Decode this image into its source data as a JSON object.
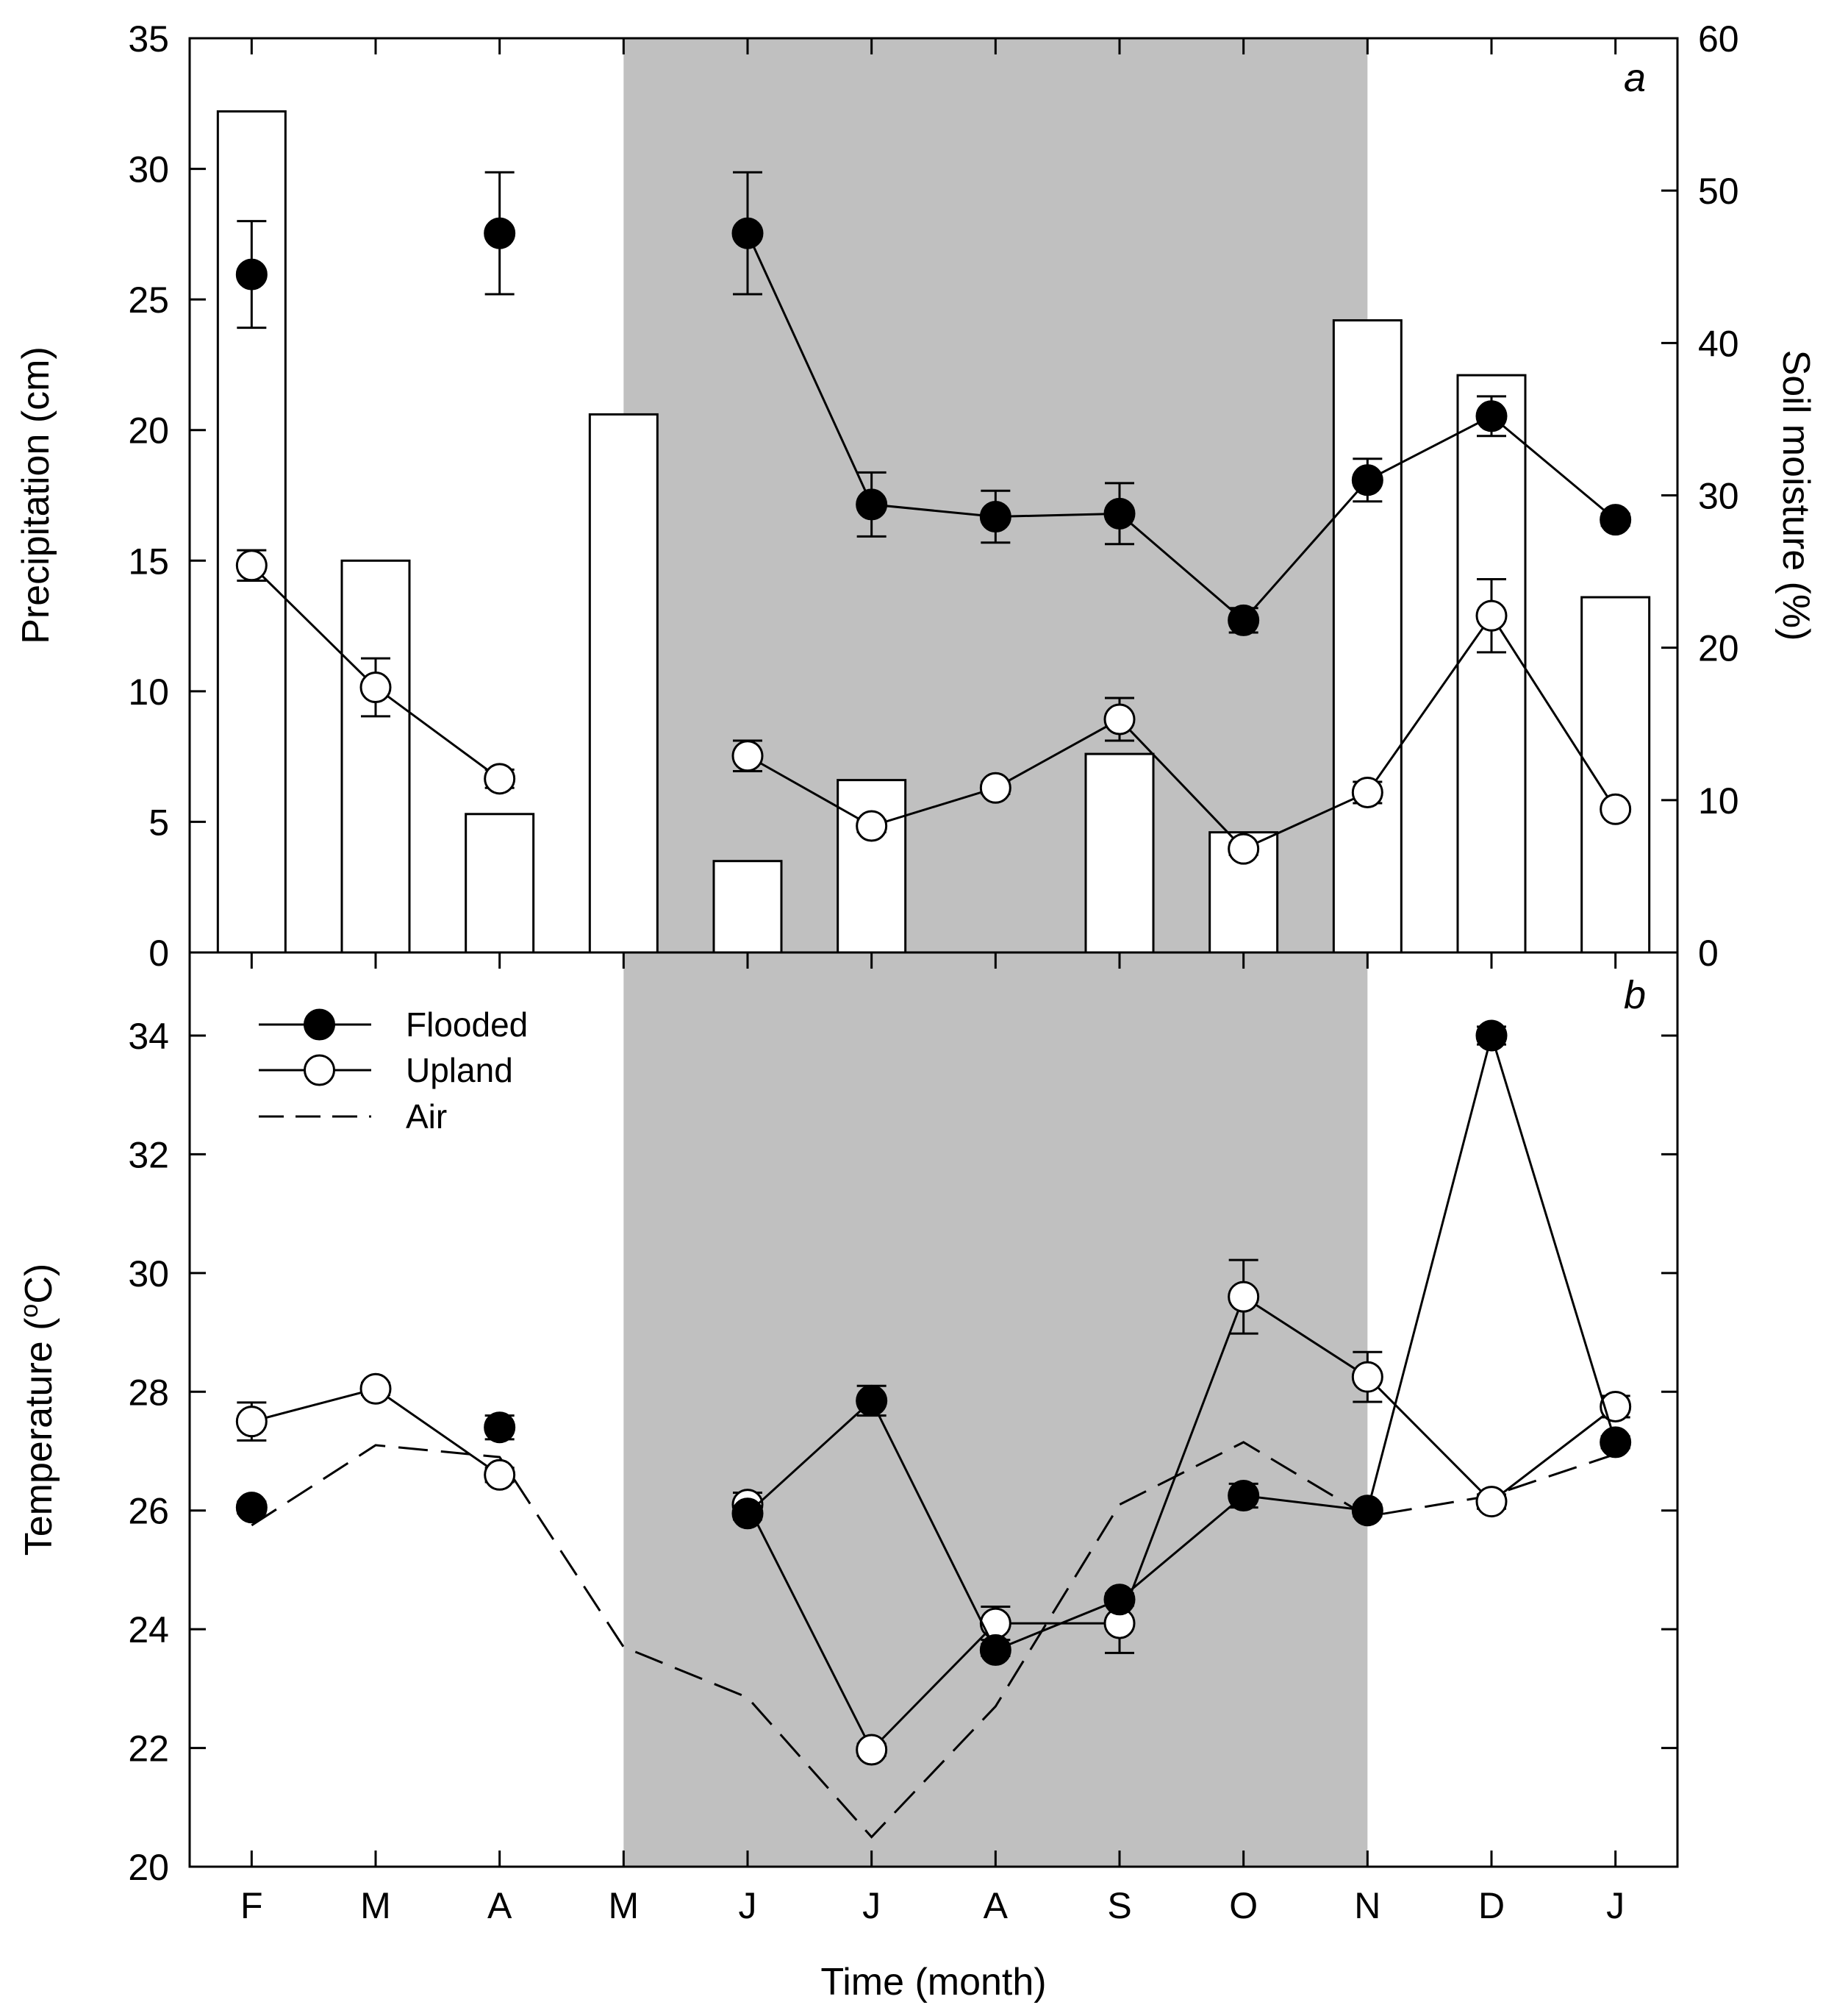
{
  "chart_data": [
    {
      "type": "bar+line",
      "panel_label": "a",
      "xlabel": "",
      "ylabel_left": "Precipitation (cm)",
      "ylabel_right": "Soil moisture (%)",
      "categories": [
        "F",
        "M",
        "A",
        "M",
        "J",
        "J",
        "A",
        "S",
        "O",
        "N",
        "D",
        "J"
      ],
      "ylim_left": [
        0,
        35
      ],
      "yticks_left": [
        0,
        5,
        10,
        15,
        20,
        25,
        30,
        35
      ],
      "ylim_right": [
        0,
        60
      ],
      "yticks_right": [
        0,
        10,
        20,
        30,
        40,
        50,
        60
      ],
      "shaded_region": {
        "from_category_index": 3.5,
        "to_category_index": 8.5,
        "color": "#c0c0c0"
      },
      "precipitation_bars": [
        32.2,
        15.0,
        5.3,
        20.6,
        3.5,
        6.6,
        null,
        7.6,
        4.6,
        24.2,
        22.1,
        13.6
      ],
      "series": [
        {
          "name": "Flooded",
          "marker": "filled",
          "values": [
            44.5,
            null,
            47.2,
            null,
            47.2,
            29.4,
            28.6,
            28.8,
            21.8,
            31.0,
            35.2,
            28.4
          ],
          "errors": [
            3.5,
            null,
            4.0,
            null,
            4.0,
            2.1,
            1.7,
            2.0,
            0.8,
            1.4,
            1.3,
            0.4
          ],
          "connected_from_index": 4
        },
        {
          "name": "Upland",
          "marker": "open",
          "values": [
            25.4,
            17.4,
            11.4,
            null,
            12.9,
            8.3,
            10.8,
            15.3,
            6.8,
            10.5,
            22.1,
            9.4
          ],
          "errors": [
            1.0,
            1.9,
            0.6,
            null,
            1.0,
            0.4,
            0.4,
            1.4,
            0.4,
            0.7,
            2.4,
            0.3
          ],
          "connected_until_index": 2
        }
      ]
    },
    {
      "type": "line",
      "panel_label": "b",
      "xlabel": "Time (month)",
      "ylabel": "Temperature (°C)",
      "ylabel_parts": [
        "Temperature (",
        "o",
        "C)"
      ],
      "categories": [
        "F",
        "M",
        "A",
        "M",
        "J",
        "J",
        "A",
        "S",
        "O",
        "N",
        "D",
        "J"
      ],
      "ylim": [
        20,
        35.4
      ],
      "yticks": [
        20,
        22,
        24,
        26,
        28,
        30,
        32,
        34
      ],
      "legend": {
        "position": "top-left",
        "entries": [
          "Flooded",
          "Upland",
          "Air"
        ]
      },
      "series": [
        {
          "name": "Flooded",
          "marker": "filled",
          "values": [
            26.05,
            null,
            27.4,
            null,
            25.95,
            27.85,
            23.65,
            24.5,
            26.25,
            26.0,
            34.0,
            27.15
          ],
          "errors": [
            0.1,
            null,
            0.2,
            null,
            0.1,
            0.25,
            0.1,
            0.1,
            0.2,
            0.1,
            0.15,
            0.1
          ],
          "connected_from_index": 4
        },
        {
          "name": "Upland",
          "marker": "open",
          "values": [
            27.5,
            28.05,
            26.6,
            null,
            26.1,
            21.97,
            24.1,
            24.1,
            29.6,
            28.25,
            26.15,
            27.75
          ],
          "errors": [
            0.32,
            0.1,
            0.12,
            null,
            0.2,
            0.1,
            0.28,
            0.5,
            0.62,
            0.42,
            0.12,
            0.18
          ],
          "connected_until_index": 2
        },
        {
          "name": "Air",
          "line": "dashed",
          "values": [
            25.75,
            27.1,
            26.9,
            23.7,
            22.85,
            20.5,
            22.7,
            26.1,
            27.15,
            25.9,
            26.25,
            26.95
          ]
        }
      ]
    }
  ]
}
